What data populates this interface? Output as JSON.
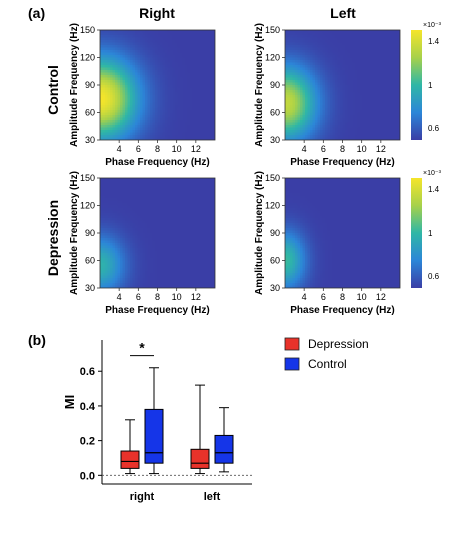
{
  "chart_data": [
    {
      "type": "heatmap",
      "panel_label": "(a)",
      "column_titles": [
        "Right",
        "Left"
      ],
      "row_titles": [
        "Control",
        "Depression"
      ],
      "xlabel": "Phase Frequency (Hz)",
      "ylabel": "Amplitude Frequency (Hz)",
      "xticks": [
        "4",
        "6",
        "8",
        "10",
        "12"
      ],
      "yticks": [
        "30",
        "60",
        "90",
        "120",
        "150"
      ],
      "xlim": [
        2,
        14
      ],
      "ylim": [
        30,
        150
      ],
      "colorbar": {
        "exponent": "×10⁻³",
        "ticks": [
          "1.4",
          "1",
          "0.6"
        ],
        "range": [
          0.5,
          1.45
        ]
      },
      "colors": {
        "low": "#3a3ea6",
        "high": "#f5e52a"
      },
      "panels": [
        {
          "row": "Control",
          "col": "Right",
          "peak": 1.45,
          "spread_phase": 4.5,
          "spread_amp": 55,
          "center_amp": 75
        },
        {
          "row": "Control",
          "col": "Left",
          "peak": 1.3,
          "spread_phase": 3.8,
          "spread_amp": 50,
          "center_amp": 70
        },
        {
          "row": "Depression",
          "col": "Right",
          "peak": 0.95,
          "spread_phase": 3.0,
          "spread_amp": 40,
          "center_amp": 55
        },
        {
          "row": "Depression",
          "col": "Left",
          "peak": 1.0,
          "spread_phase": 2.5,
          "spread_amp": 40,
          "center_amp": 60
        }
      ]
    },
    {
      "type": "box",
      "panel_label": "(b)",
      "ylabel": "MI",
      "categories": [
        "right",
        "left"
      ],
      "yticks": [
        "0.0",
        "0.2",
        "0.4",
        "0.6"
      ],
      "ylim": [
        -0.05,
        0.78
      ],
      "significance": "*",
      "series": [
        {
          "name": "Depression",
          "color": "#e8322a",
          "boxes": [
            {
              "min": 0.01,
              "q1": 0.04,
              "median": 0.08,
              "q3": 0.14,
              "max": 0.32
            },
            {
              "min": 0.01,
              "q1": 0.04,
              "median": 0.07,
              "q3": 0.15,
              "max": 0.52
            }
          ]
        },
        {
          "name": "Control",
          "color": "#1535e8",
          "boxes": [
            {
              "min": 0.01,
              "q1": 0.07,
              "median": 0.13,
              "q3": 0.38,
              "max": 0.62
            },
            {
              "min": 0.02,
              "q1": 0.07,
              "median": 0.13,
              "q3": 0.23,
              "max": 0.39
            }
          ]
        }
      ]
    }
  ]
}
